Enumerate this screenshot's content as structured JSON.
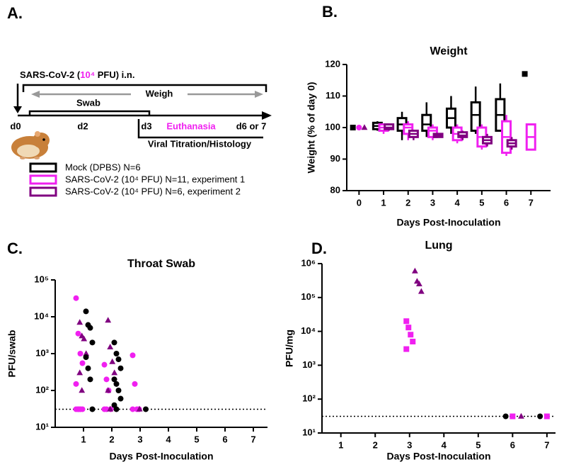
{
  "diagram": {
    "label": "A.",
    "inoculum": [
      "SARS-CoV-2 (",
      "10⁴",
      " PFU) i.n."
    ],
    "weigh": "Weigh",
    "swab": "Swab",
    "timepoints": [
      "d0",
      "d2",
      "d3",
      "d6 or 7"
    ],
    "euthanasia": "Euthanasia",
    "endpoint": "Viral Titration/Histology"
  },
  "chart_data": [
    {
      "type": "box",
      "panel_label": "B.",
      "title": "Weight",
      "x_label": "Days Post-Inoculation",
      "y_label": "Weight (% of day 0)",
      "xlim": [
        -0.5,
        7.8
      ],
      "xticks": [
        0,
        1,
        2,
        3,
        4,
        5,
        6,
        7
      ],
      "ylim": [
        80,
        120
      ],
      "yticks": [
        80,
        90,
        100,
        110,
        120
      ],
      "series": [
        {
          "name": "Mock (DPBS) N=6",
          "color": "#000000",
          "marker": "square",
          "x": [
            0,
            1,
            2,
            3,
            4,
            5,
            6,
            7
          ],
          "boxes": [
            {
              "min": 100,
              "q1": 100,
              "median": 100,
              "q3": 100,
              "max": 100
            },
            {
              "min": 99,
              "q1": 99.5,
              "median": 100.5,
              "q3": 101.5,
              "max": 102
            },
            {
              "min": 96,
              "q1": 99,
              "median": 101,
              "q3": 103,
              "max": 105
            },
            {
              "min": 97,
              "q1": 99,
              "median": 101,
              "q3": 104,
              "max": 108
            },
            {
              "min": 98,
              "q1": 100,
              "median": 103,
              "q3": 106,
              "max": 110
            },
            {
              "min": 98,
              "q1": 99,
              "median": 104,
              "q3": 108,
              "max": 113
            },
            {
              "min": 99,
              "q1": 99,
              "median": 104,
              "q3": 109,
              "max": 114
            },
            {
              "min": 117,
              "q1": 117,
              "median": 117,
              "q3": 117,
              "max": 117
            }
          ]
        },
        {
          "name": "SARS-CoV-2 (10⁴ PFU) N=11, experiment 1",
          "color": "#f020f0",
          "marker": "circle",
          "x": [
            0,
            1,
            2,
            3,
            4,
            5,
            6,
            7
          ],
          "boxes": [
            {
              "min": 100,
              "q1": 100,
              "median": 100,
              "q3": 100,
              "max": 100
            },
            {
              "min": 98,
              "q1": 99,
              "median": 100,
              "q3": 101,
              "max": 101
            },
            {
              "min": 96,
              "q1": 98,
              "median": 100,
              "q3": 101,
              "max": 102
            },
            {
              "min": 96,
              "q1": 97,
              "median": 99,
              "q3": 100,
              "max": 101
            },
            {
              "min": 95,
              "q1": 96,
              "median": 98,
              "q3": 100,
              "max": 101
            },
            {
              "min": 93,
              "q1": 94,
              "median": 97,
              "q3": 100,
              "max": 101
            },
            {
              "min": 91,
              "q1": 92,
              "median": 97,
              "q3": 102,
              "max": 104
            },
            {
              "min": 93,
              "q1": 93,
              "median": 97,
              "q3": 101,
              "max": 101
            }
          ]
        },
        {
          "name": "SARS-CoV-2 (10⁴ PFU) N=6, experiment 2",
          "color": "#800080",
          "marker": "triangle",
          "x": [
            0,
            1,
            2,
            3,
            4,
            5,
            6
          ],
          "boxes": [
            {
              "min": 100,
              "q1": 100,
              "median": 100,
              "q3": 100,
              "max": 100
            },
            {
              "min": 99,
              "q1": 99.5,
              "median": 100,
              "q3": 101,
              "max": 101
            },
            {
              "min": 96,
              "q1": 97,
              "median": 98,
              "q3": 99,
              "max": 99
            },
            {
              "min": 97,
              "q1": 97,
              "median": 97.5,
              "q3": 98,
              "max": 98
            },
            {
              "min": 96,
              "q1": 97,
              "median": 97.5,
              "q3": 98.5,
              "max": 99
            },
            {
              "min": 94,
              "q1": 95,
              "median": 96,
              "q3": 97,
              "max": 98
            },
            {
              "min": 93,
              "q1": 94,
              "median": 95,
              "q3": 96,
              "max": 97
            }
          ]
        }
      ]
    },
    {
      "type": "scatter",
      "panel_label": "C.",
      "title": "Throat Swab",
      "x_label": "Days Post-Inoculation",
      "y_label": "PFU/swab",
      "log_y": true,
      "xlim": [
        0,
        7.5
      ],
      "xticks": [
        1,
        2,
        3,
        4,
        5,
        6,
        7
      ],
      "ylim": [
        10,
        100000
      ],
      "yticks": [
        {
          "value": 10,
          "label": "10¹"
        },
        {
          "value": 100,
          "label": "10²"
        },
        {
          "value": 1000,
          "label": "10³"
        },
        {
          "value": 10000,
          "label": "10⁴"
        },
        {
          "value": 100000,
          "label": "10⁵"
        }
      ],
      "limit_of_detection": 31,
      "series": [
        {
          "color": "#f020f0",
          "marker": "circle",
          "x": [
            1,
            1,
            1,
            1,
            1,
            1,
            1,
            1,
            1,
            1,
            1,
            2,
            2,
            2,
            2,
            2,
            2,
            3,
            3,
            3,
            3,
            3
          ],
          "values": [
            32000,
            3500,
            1000,
            550,
            150,
            31,
            31,
            31,
            31,
            31,
            31,
            500,
            200,
            100,
            31,
            31,
            31,
            900,
            150,
            31,
            31,
            31
          ]
        },
        {
          "color": "#800080",
          "marker": "triangle",
          "x": [
            1,
            1,
            1,
            1,
            1,
            1,
            2,
            2,
            2,
            2,
            2,
            2,
            3
          ],
          "values": [
            7000,
            3000,
            2500,
            1000,
            300,
            100,
            8000,
            1500,
            600,
            300,
            100,
            31,
            31
          ]
        },
        {
          "color": "#000000",
          "marker": "circle",
          "x": [
            1,
            1,
            1,
            1,
            1,
            1,
            1,
            1,
            2,
            2,
            2,
            2,
            2,
            2,
            2,
            2,
            2,
            2,
            3
          ],
          "values": [
            14000,
            6000,
            5000,
            2000,
            800,
            400,
            200,
            31,
            2000,
            1000,
            700,
            400,
            200,
            150,
            100,
            60,
            40,
            31,
            31
          ]
        }
      ]
    },
    {
      "type": "scatter",
      "panel_label": "D.",
      "title": "Lung",
      "x_label": "Days Post-Inoculation",
      "y_label": "PFU/mg",
      "log_y": true,
      "xlim": [
        0.45,
        7.25
      ],
      "xticks": [
        1,
        2,
        3,
        4,
        5,
        6,
        7
      ],
      "ylim": [
        10,
        1000000
      ],
      "yticks": [
        {
          "value": 10,
          "label": "10¹"
        },
        {
          "value": 100,
          "label": "10²"
        },
        {
          "value": 1000,
          "label": "10³"
        },
        {
          "value": 10000,
          "label": "10⁴"
        },
        {
          "value": 100000,
          "label": "10⁵"
        },
        {
          "value": 1000000,
          "label": "10⁶"
        }
      ],
      "limit_of_detection": 31,
      "series": [
        {
          "color": "#000000",
          "marker": "circle",
          "x": [
            6,
            7
          ],
          "values": [
            31,
            31
          ]
        },
        {
          "color": "#f020f0",
          "marker": "square",
          "x": [
            3,
            3,
            3,
            3,
            3,
            6,
            7
          ],
          "values": [
            20000,
            13000,
            8000,
            5000,
            3000,
            31,
            31
          ]
        },
        {
          "color": "#800080",
          "marker": "triangle",
          "x": [
            3,
            3,
            3,
            3,
            6
          ],
          "values": [
            600000,
            300000,
            250000,
            150000,
            31
          ]
        }
      ]
    }
  ]
}
